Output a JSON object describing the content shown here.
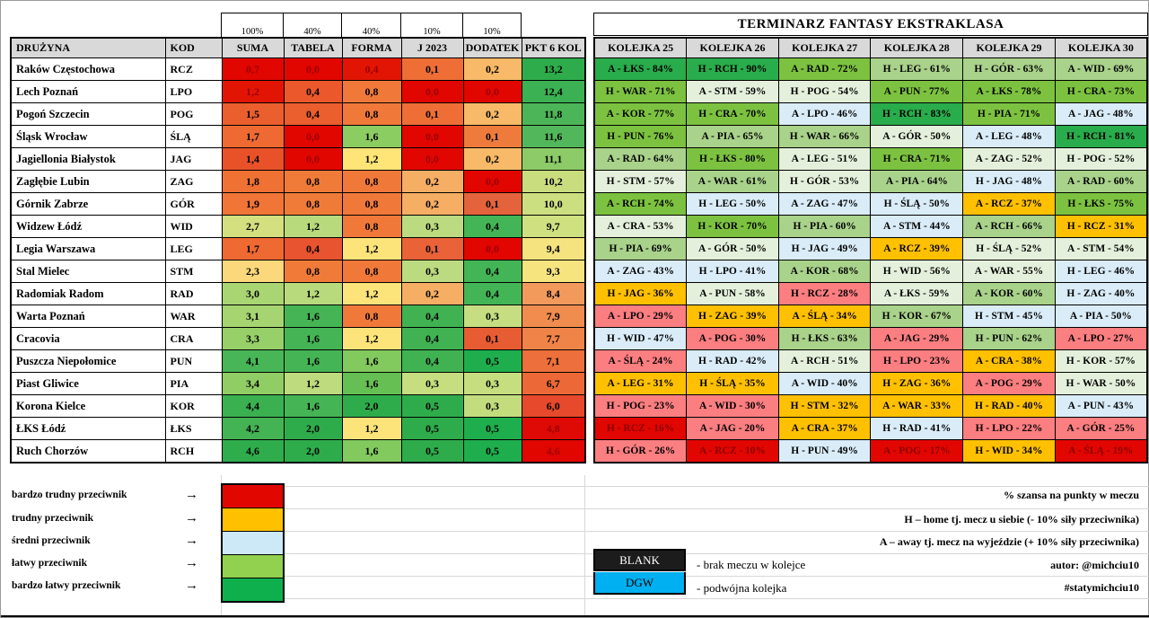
{
  "left_table": {
    "percent_row": [
      "100%",
      "40%",
      "40%",
      "10%",
      "10%"
    ],
    "headers": [
      "DRUŻYNA",
      "KOD",
      "SUMA",
      "TABELA",
      "FORMA",
      "J 2023",
      "DODATEK",
      "PKT 6 KOL"
    ],
    "dark_text_color": "#9C0006",
    "rows": [
      {
        "team": "Raków Częstochowa",
        "kod": "RCZ",
        "cells": [
          [
            "0,7",
            "#E10600",
            1
          ],
          [
            "0,0",
            "#E10600",
            1
          ],
          [
            "0,4",
            "#E21505",
            1
          ],
          [
            "0,1",
            "#EE6E36",
            0
          ],
          [
            "0,2",
            "#F8BA68",
            0
          ],
          [
            "13,2",
            "#2EAC4B",
            0
          ]
        ]
      },
      {
        "team": "Lech Poznań",
        "kod": "LPO",
        "cells": [
          [
            "1,2",
            "#E21505",
            1
          ],
          [
            "0,4",
            "#EA582B",
            0
          ],
          [
            "0,8",
            "#F0793A",
            0
          ],
          [
            "0,0",
            "#E10600",
            1
          ],
          [
            "0,0",
            "#E10600",
            1
          ],
          [
            "12,4",
            "#3BB153",
            0
          ]
        ]
      },
      {
        "team": "Pogoń Szczecin",
        "kod": "POG",
        "cells": [
          [
            "1,5",
            "#EB5E2E",
            0
          ],
          [
            "0,4",
            "#EB5E2E",
            0
          ],
          [
            "0,8",
            "#F0793A",
            0
          ],
          [
            "0,1",
            "#EE6E36",
            0
          ],
          [
            "0,2",
            "#F8BA68",
            0
          ],
          [
            "11,8",
            "#4CB558",
            0
          ]
        ]
      },
      {
        "team": "Śląsk Wrocław",
        "kod": "ŚLĄ",
        "cells": [
          [
            "1,7",
            "#EE6A32",
            0
          ],
          [
            "0,0",
            "#E10600",
            1
          ],
          [
            "1,6",
            "#8CCD62",
            0
          ],
          [
            "0,0",
            "#E10600",
            1
          ],
          [
            "0,1",
            "#EE7B3C",
            0
          ],
          [
            "11,6",
            "#52B75A",
            0
          ]
        ]
      },
      {
        "team": "Jagiellonia Białystok",
        "kod": "JAG",
        "cells": [
          [
            "1,4",
            "#E95129",
            0
          ],
          [
            "0,0",
            "#E10600",
            1
          ],
          [
            "1,2",
            "#FFE477",
            0
          ],
          [
            "0,0",
            "#E10600",
            1
          ],
          [
            "0,2",
            "#F8BA68",
            0
          ],
          [
            "11,1",
            "#8CCB67",
            0
          ]
        ]
      },
      {
        "team": "Zagłębie Lubin",
        "kod": "ZAG",
        "cells": [
          [
            "1,8",
            "#EF7134",
            0
          ],
          [
            "0,8",
            "#F07B38",
            0
          ],
          [
            "0,8",
            "#F0793A",
            0
          ],
          [
            "0,2",
            "#F5AE64",
            0
          ],
          [
            "0,0",
            "#E10600",
            1
          ],
          [
            "10,2",
            "#C9DD7E",
            0
          ]
        ]
      },
      {
        "team": "Górnik Zabrze",
        "kod": "GÓR",
        "cells": [
          [
            "1,9",
            "#F07536",
            0
          ],
          [
            "0,8",
            "#F07B38",
            0
          ],
          [
            "0,8",
            "#F0793A",
            0
          ],
          [
            "0,2",
            "#F5AE64",
            0
          ],
          [
            "0,1",
            "#E4633C",
            0
          ],
          [
            "10,0",
            "#CCDF80",
            0
          ]
        ]
      },
      {
        "team": "Widzew Łódź",
        "kod": "WID",
        "cells": [
          [
            "2,7",
            "#D4E07F",
            0
          ],
          [
            "1,2",
            "#B8DA7D",
            0
          ],
          [
            "0,8",
            "#F0793A",
            0
          ],
          [
            "0,3",
            "#BCDB80",
            0
          ],
          [
            "0,4",
            "#43B556",
            0
          ],
          [
            "9,7",
            "#CFE081",
            0
          ]
        ]
      },
      {
        "team": "Legia Warszawa",
        "kod": "LEG",
        "cells": [
          [
            "1,7",
            "#EE6A32",
            0
          ],
          [
            "0,4",
            "#E85330",
            0
          ],
          [
            "1,2",
            "#FCE47B",
            0
          ],
          [
            "0,1",
            "#E96238",
            0
          ],
          [
            "0,0",
            "#E10600",
            1
          ],
          [
            "9,4",
            "#F4E37E",
            0
          ]
        ]
      },
      {
        "team": "Stal Mielec",
        "kod": "STM",
        "cells": [
          [
            "2,3",
            "#FAD87B",
            0
          ],
          [
            "0,8",
            "#F07B38",
            0
          ],
          [
            "0,8",
            "#F0793A",
            0
          ],
          [
            "0,3",
            "#BCDB80",
            0
          ],
          [
            "0,4",
            "#43B556",
            0
          ],
          [
            "9,3",
            "#F6E47E",
            0
          ]
        ]
      },
      {
        "team": "Radomiak Radom",
        "kod": "RAD",
        "cells": [
          [
            "3,0",
            "#AAD573",
            0
          ],
          [
            "1,2",
            "#B8DA7D",
            0
          ],
          [
            "1,2",
            "#FCE47B",
            0
          ],
          [
            "0,2",
            "#F5AE64",
            0
          ],
          [
            "0,4",
            "#43B556",
            0
          ],
          [
            "8,4",
            "#F29A5C",
            0
          ]
        ]
      },
      {
        "team": "Warta Poznań",
        "kod": "WAR",
        "cells": [
          [
            "3,1",
            "#A6D471",
            0
          ],
          [
            "1,6",
            "#45B455",
            0
          ],
          [
            "0,8",
            "#F0793A",
            0
          ],
          [
            "0,4",
            "#40B252",
            0
          ],
          [
            "0,3",
            "#C6DE81",
            0
          ],
          [
            "7,9",
            "#F08C4E",
            0
          ]
        ]
      },
      {
        "team": "Cracovia",
        "kod": "CRA",
        "cells": [
          [
            "3,3",
            "#97D068",
            0
          ],
          [
            "1,6",
            "#45B455",
            0
          ],
          [
            "1,2",
            "#FCE47B",
            0
          ],
          [
            "0,4",
            "#40B252",
            0
          ],
          [
            "0,1",
            "#E75C33",
            0
          ],
          [
            "7,7",
            "#EF8348",
            0
          ]
        ]
      },
      {
        "team": "Puszcza Niepołomice",
        "kod": "PUN",
        "cells": [
          [
            "4,1",
            "#48B556",
            0
          ],
          [
            "1,6",
            "#45B455",
            0
          ],
          [
            "1,6",
            "#82C95E",
            0
          ],
          [
            "0,4",
            "#40B252",
            0
          ],
          [
            "0,5",
            "#1FAE4D",
            0
          ],
          [
            "7,1",
            "#ED6F3B",
            0
          ]
        ]
      },
      {
        "team": "Piast Gliwice",
        "kod": "PIA",
        "cells": [
          [
            "3,4",
            "#90CD65",
            0
          ],
          [
            "1,2",
            "#BEDB7E",
            0
          ],
          [
            "1,6",
            "#66BF53",
            0
          ],
          [
            "0,3",
            "#C6DE7F",
            0
          ],
          [
            "0,3",
            "#C6DE7F",
            0
          ],
          [
            "6,7",
            "#EC6836",
            0
          ]
        ]
      },
      {
        "team": "Korona Kielce",
        "kod": "KOR",
        "cells": [
          [
            "4,4",
            "#3AB050",
            0
          ],
          [
            "1,6",
            "#45B455",
            0
          ],
          [
            "2,0",
            "#2EAC4B",
            0
          ],
          [
            "0,5",
            "#2EAC4B",
            0
          ],
          [
            "0,3",
            "#C3DD7E",
            0
          ],
          [
            "6,0",
            "#E6492B",
            0
          ]
        ]
      },
      {
        "team": "ŁKS Łódź",
        "kod": "ŁKS",
        "cells": [
          [
            "4,2",
            "#44B354",
            0
          ],
          [
            "2,0",
            "#2EAC4B",
            0
          ],
          [
            "1,2",
            "#FCE47B",
            0
          ],
          [
            "0,5",
            "#2EAC4B",
            0
          ],
          [
            "0,5",
            "#1FAE4D",
            0
          ],
          [
            "4,8",
            "#DF0A05",
            1
          ]
        ]
      },
      {
        "team": "Ruch Chorzów",
        "kod": "RCH",
        "cells": [
          [
            "4,6",
            "#2FAD4C",
            0
          ],
          [
            "2,0",
            "#2EAC4B",
            0
          ],
          [
            "1,6",
            "#82C95E",
            0
          ],
          [
            "0,5",
            "#2EAC4B",
            0
          ],
          [
            "0,5",
            "#1FAE4D",
            0
          ],
          [
            "4,6",
            "#E10600",
            1
          ]
        ]
      }
    ]
  },
  "fixtures": {
    "title": "TERMINARZ FANTASY EKSTRAKLASA",
    "headers": [
      "KOLEJKA 25",
      "KOLEJKA 26",
      "KOLEJKA 27",
      "KOLEJKA 28",
      "KOLEJKA 29",
      "KOLEJKA 30"
    ],
    "bands": {
      "sg": "#29AC4B",
      "mg": "#7CC240",
      "lg": "#A9D28A",
      "pg": "#E4F0DB",
      "bl": "#D9ECF8",
      "am": "#FFC000",
      "sa": "#FB7E81",
      "rd": "#E10600"
    },
    "red_band_text": "#8B0000",
    "rows": [
      [
        [
          "A - ŁKS - 84%",
          "sg"
        ],
        [
          "H - RCH - 90%",
          "sg"
        ],
        [
          "A - RAD - 72%",
          "mg"
        ],
        [
          "H - LEG - 61%",
          "lg"
        ],
        [
          "H - GÓR - 63%",
          "lg"
        ],
        [
          "A - WID - 69%",
          "lg"
        ]
      ],
      [
        [
          "H - WAR - 71%",
          "mg"
        ],
        [
          "A - STM - 59%",
          "pg"
        ],
        [
          "H - POG - 54%",
          "pg"
        ],
        [
          "A - PUN - 77%",
          "mg"
        ],
        [
          "A - ŁKS - 78%",
          "mg"
        ],
        [
          "H - CRA - 73%",
          "mg"
        ]
      ],
      [
        [
          "A - KOR - 77%",
          "mg"
        ],
        [
          "H - CRA - 70%",
          "mg"
        ],
        [
          "A - LPO - 46%",
          "bl"
        ],
        [
          "H - RCH - 83%",
          "sg"
        ],
        [
          "H - PIA - 71%",
          "mg"
        ],
        [
          "A - JAG - 48%",
          "bl"
        ]
      ],
      [
        [
          "H - PUN - 76%",
          "mg"
        ],
        [
          "A - PIA - 65%",
          "lg"
        ],
        [
          "H - WAR - 66%",
          "lg"
        ],
        [
          "A - GÓR - 50%",
          "pg"
        ],
        [
          "A - LEG - 48%",
          "bl"
        ],
        [
          "H - RCH - 81%",
          "sg"
        ]
      ],
      [
        [
          "A - RAD - 64%",
          "lg"
        ],
        [
          "H - ŁKS - 80%",
          "mg"
        ],
        [
          "A - LEG - 51%",
          "pg"
        ],
        [
          "H - CRA - 71%",
          "mg"
        ],
        [
          "A - ZAG - 52%",
          "pg"
        ],
        [
          "H - POG - 52%",
          "pg"
        ]
      ],
      [
        [
          "H - STM - 57%",
          "pg"
        ],
        [
          "A - WAR - 61%",
          "lg"
        ],
        [
          "H - GÓR - 53%",
          "pg"
        ],
        [
          "A - PIA - 64%",
          "lg"
        ],
        [
          "H - JAG - 48%",
          "bl"
        ],
        [
          "A - RAD - 60%",
          "lg"
        ]
      ],
      [
        [
          "A - RCH - 74%",
          "mg"
        ],
        [
          "H - LEG - 50%",
          "bl"
        ],
        [
          "A - ZAG - 47%",
          "bl"
        ],
        [
          "H - ŚLĄ - 50%",
          "bl"
        ],
        [
          "A - RCZ - 37%",
          "am"
        ],
        [
          "H - ŁKS - 75%",
          "mg"
        ]
      ],
      [
        [
          "A - CRA - 53%",
          "pg"
        ],
        [
          "H - KOR - 70%",
          "mg"
        ],
        [
          "H - PIA - 60%",
          "lg"
        ],
        [
          "A - STM - 44%",
          "bl"
        ],
        [
          "A - RCH - 66%",
          "lg"
        ],
        [
          "H - RCZ - 31%",
          "am"
        ]
      ],
      [
        [
          "H - PIA - 69%",
          "lg"
        ],
        [
          "A - GÓR - 50%",
          "pg"
        ],
        [
          "H - JAG - 49%",
          "bl"
        ],
        [
          "A - RCZ - 39%",
          "am"
        ],
        [
          "H - ŚLĄ - 52%",
          "pg"
        ],
        [
          "A - STM - 54%",
          "pg"
        ]
      ],
      [
        [
          "A - ZAG - 43%",
          "bl"
        ],
        [
          "H - LPO - 41%",
          "bl"
        ],
        [
          "A - KOR - 68%",
          "lg"
        ],
        [
          "H - WID - 56%",
          "pg"
        ],
        [
          "A - WAR - 55%",
          "pg"
        ],
        [
          "H - LEG - 46%",
          "bl"
        ]
      ],
      [
        [
          "H - JAG - 36%",
          "am"
        ],
        [
          "A - PUN - 58%",
          "pg"
        ],
        [
          "H - RCZ - 28%",
          "sa"
        ],
        [
          "A - ŁKS - 59%",
          "pg"
        ],
        [
          "A - KOR - 60%",
          "lg"
        ],
        [
          "H - ZAG - 40%",
          "bl"
        ]
      ],
      [
        [
          "A - LPO - 29%",
          "sa"
        ],
        [
          "H - ZAG - 39%",
          "am"
        ],
        [
          "A - ŚLĄ - 34%",
          "am"
        ],
        [
          "H - KOR - 67%",
          "lg"
        ],
        [
          "H - STM - 45%",
          "bl"
        ],
        [
          "A - PIA - 50%",
          "bl"
        ]
      ],
      [
        [
          "H - WID - 47%",
          "bl"
        ],
        [
          "A - POG - 30%",
          "sa"
        ],
        [
          "H - ŁKS - 63%",
          "lg"
        ],
        [
          "A - JAG - 29%",
          "sa"
        ],
        [
          "H - PUN - 62%",
          "lg"
        ],
        [
          "A - LPO - 27%",
          "sa"
        ]
      ],
      [
        [
          "A - ŚLĄ - 24%",
          "sa"
        ],
        [
          "H - RAD - 42%",
          "bl"
        ],
        [
          "A - RCH - 51%",
          "pg"
        ],
        [
          "H - LPO - 23%",
          "sa"
        ],
        [
          "A - CRA - 38%",
          "am"
        ],
        [
          "H - KOR - 57%",
          "pg"
        ]
      ],
      [
        [
          "A - LEG - 31%",
          "am"
        ],
        [
          "H - ŚLĄ - 35%",
          "am"
        ],
        [
          "A - WID - 40%",
          "bl"
        ],
        [
          "H - ZAG - 36%",
          "am"
        ],
        [
          "A - POG - 29%",
          "sa"
        ],
        [
          "H - WAR - 50%",
          "pg"
        ]
      ],
      [
        [
          "H - POG - 23%",
          "sa"
        ],
        [
          "A - WID - 30%",
          "sa"
        ],
        [
          "H - STM - 32%",
          "am"
        ],
        [
          "A - WAR - 33%",
          "am"
        ],
        [
          "H - RAD - 40%",
          "am"
        ],
        [
          "A - PUN - 43%",
          "bl"
        ]
      ],
      [
        [
          "H - RCZ - 16%",
          "rd"
        ],
        [
          "A - JAG - 20%",
          "sa"
        ],
        [
          "A - CRA - 37%",
          "am"
        ],
        [
          "H - RAD - 41%",
          "bl"
        ],
        [
          "H - LPO - 22%",
          "sa"
        ],
        [
          "A - GÓR - 25%",
          "sa"
        ]
      ],
      [
        [
          "H - GÓR - 26%",
          "sa"
        ],
        [
          "A - RCZ - 10%",
          "rd"
        ],
        [
          "H - PUN - 49%",
          "bl"
        ],
        [
          "A - POG - 17%",
          "rd"
        ],
        [
          "H - WID - 34%",
          "am"
        ],
        [
          "A - ŚLĄ - 19%",
          "rd"
        ]
      ]
    ]
  },
  "legend": {
    "items": [
      {
        "label": "bardzo trudny przeciwnik",
        "color": "#E10600"
      },
      {
        "label": "trudny przeciwnik",
        "color": "#FFC000"
      },
      {
        "label": "średni przeciwnik",
        "color": "#CDE9F7"
      },
      {
        "label": "łatwy przeciwnik",
        "color": "#92D050"
      },
      {
        "label": "bardzo łatwy przeciwnik",
        "color": "#0EAF4D"
      }
    ],
    "arrow": "→"
  },
  "boxes": {
    "blank": {
      "label": "BLANK",
      "color": "#1C1C1C",
      "desc": "- brak meczu w kolejce"
    },
    "dgw": {
      "label": "DGW",
      "color": "#00B0F0",
      "desc": "- podwójna kolejka"
    }
  },
  "notes": [
    "% szansa na punkty w meczu",
    "H – home tj. mecz u siebie (- 10% siły przeciwnika)",
    "A – away tj. mecz na wyjeździe (+ 10% siły przeciwnika)",
    "autor: @michciu10",
    "#statymichciu10"
  ],
  "header_bg": "#D9D9D9"
}
